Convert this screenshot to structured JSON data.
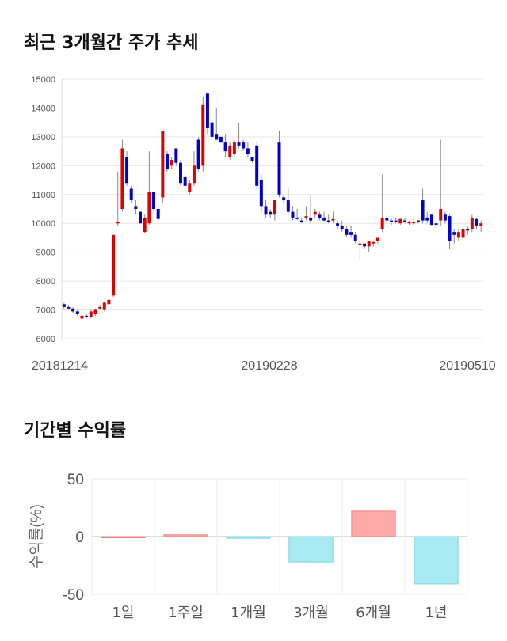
{
  "headings": {
    "price_trend": "최근 3개월간 주가 추세",
    "period_return": "기간별 수익률"
  },
  "chart_data": [
    {
      "type": "candlestick",
      "ylim": [
        6000,
        15000
      ],
      "y_ticks": [
        "15000",
        "14000",
        "13000",
        "12000",
        "11000",
        "10000",
        "9000",
        "8000",
        "7000",
        "6000"
      ],
      "x_tick_labels": [
        "20181214",
        "20190228",
        "20190510"
      ],
      "grid": true,
      "up_color": "#dd0000",
      "down_color": "#0000cc",
      "candles": [
        [
          7200,
          7250,
          7050,
          7100
        ],
        [
          7100,
          7150,
          7000,
          7050
        ],
        [
          7050,
          7100,
          6900,
          6950
        ],
        [
          6950,
          7000,
          6800,
          6850
        ],
        [
          6700,
          6850,
          6650,
          6800
        ],
        [
          6800,
          6850,
          6700,
          6750
        ],
        [
          6750,
          7000,
          6700,
          6950
        ],
        [
          6850,
          7050,
          6800,
          7000
        ],
        [
          7050,
          7150,
          7000,
          7100
        ],
        [
          7000,
          7300,
          6950,
          7250
        ],
        [
          7200,
          7400,
          7150,
          7350
        ],
        [
          7500,
          9600,
          7450,
          9600
        ],
        [
          10000,
          11800,
          9900,
          10050
        ],
        [
          10500,
          12900,
          10400,
          12600
        ],
        [
          12300,
          12500,
          11300,
          11400
        ],
        [
          11200,
          11300,
          10700,
          10800
        ],
        [
          10600,
          10800,
          10300,
          10500
        ],
        [
          10400,
          10400,
          10000,
          10000
        ],
        [
          9700,
          10300,
          9650,
          10200
        ],
        [
          10000,
          12500,
          9950,
          11100
        ],
        [
          11100,
          11100,
          10400,
          10500
        ],
        [
          10500,
          10700,
          10100,
          10150
        ],
        [
          10900,
          13200,
          10700,
          13200
        ],
        [
          12400,
          12500,
          11800,
          11900
        ],
        [
          12000,
          12300,
          11900,
          12200
        ],
        [
          12600,
          12600,
          12000,
          12100
        ],
        [
          12100,
          12200,
          11300,
          11400
        ],
        [
          11600,
          11800,
          11100,
          11300
        ],
        [
          11100,
          11500,
          11000,
          11400
        ],
        [
          11400,
          12500,
          11300,
          12000
        ],
        [
          12900,
          13000,
          11800,
          11900
        ],
        [
          12000,
          14400,
          11800,
          14100
        ],
        [
          14500,
          14500,
          13100,
          13300
        ],
        [
          13500,
          13700,
          12900,
          13000
        ],
        [
          13100,
          14000,
          12900,
          12900
        ],
        [
          13000,
          13000,
          12800,
          12800
        ],
        [
          12800,
          13100,
          12300,
          12500
        ],
        [
          12300,
          12800,
          12200,
          12700
        ],
        [
          12400,
          12900,
          12300,
          12800
        ],
        [
          12800,
          13500,
          12600,
          12700
        ],
        [
          12800,
          12900,
          12500,
          12600
        ],
        [
          12600,
          12800,
          12300,
          12400
        ],
        [
          12300,
          12300,
          12100,
          12150
        ],
        [
          12700,
          12800,
          11200,
          11300
        ],
        [
          11500,
          11700,
          10400,
          10600
        ],
        [
          10600,
          10800,
          10200,
          10300
        ],
        [
          10400,
          10500,
          10200,
          10300
        ],
        [
          10300,
          10800,
          10100,
          10800
        ],
        [
          12800,
          13200,
          10900,
          11000
        ],
        [
          10900,
          11000,
          10700,
          10800
        ],
        [
          10800,
          11200,
          10300,
          10400
        ],
        [
          10400,
          10600,
          10100,
          10200
        ],
        [
          10200,
          10500,
          10100,
          10150
        ],
        [
          10100,
          10200,
          10000,
          10050
        ],
        [
          10200,
          10600,
          10100,
          10250
        ],
        [
          10200,
          11000,
          10000,
          10100
        ],
        [
          10300,
          10500,
          10200,
          10400
        ],
        [
          10300,
          10400,
          10100,
          10200
        ],
        [
          10200,
          10400,
          10050,
          10100
        ],
        [
          10100,
          10300,
          10000,
          10050
        ],
        [
          10100,
          10400,
          10000,
          10150
        ],
        [
          10000,
          10100,
          9800,
          9900
        ],
        [
          9900,
          10100,
          9700,
          9800
        ],
        [
          9800,
          9900,
          9500,
          9600
        ],
        [
          9700,
          9900,
          9500,
          9600
        ],
        [
          9600,
          9700,
          9300,
          9400
        ],
        [
          9300,
          9400,
          8700,
          9300
        ],
        [
          9300,
          9300,
          9100,
          9200
        ],
        [
          9200,
          9400,
          9000,
          9400
        ],
        [
          9300,
          9400,
          9200,
          9350
        ],
        [
          9400,
          9500,
          9300,
          9500
        ],
        [
          9800,
          11700,
          9700,
          10200
        ],
        [
          10200,
          10300,
          10000,
          10100
        ],
        [
          10100,
          10200,
          9950,
          10050
        ],
        [
          10100,
          10200,
          10000,
          10050
        ],
        [
          10000,
          10200,
          9950,
          10150
        ],
        [
          10100,
          10200,
          10000,
          10050
        ],
        [
          10000,
          10100,
          9950,
          10050
        ],
        [
          10000,
          10200,
          9950,
          10050
        ],
        [
          10100,
          10100,
          10000,
          10050
        ],
        [
          10800,
          11200,
          10000,
          10100
        ],
        [
          10200,
          10400,
          10000,
          10100
        ],
        [
          10300,
          10300,
          9900,
          9950
        ],
        [
          10000,
          10100,
          9900,
          9950
        ],
        [
          10100,
          12900,
          9900,
          10500
        ],
        [
          10300,
          10400,
          10000,
          10100
        ],
        [
          10250,
          10300,
          9100,
          9400
        ],
        [
          9700,
          9800,
          9300,
          9600
        ],
        [
          9500,
          9800,
          9400,
          9700
        ],
        [
          9500,
          10100,
          9400,
          9800
        ],
        [
          9800,
          9900,
          9600,
          9750
        ],
        [
          9800,
          10300,
          9700,
          10200
        ],
        [
          10150,
          10200,
          9800,
          9900
        ],
        [
          9900,
          10100,
          9700,
          10000
        ]
      ]
    },
    {
      "type": "bar",
      "categories": [
        "1일",
        "1주일",
        "1개월",
        "3개월",
        "6개월",
        "1년"
      ],
      "values": [
        0,
        1.5,
        -1.5,
        -22,
        22,
        -41
      ],
      "ylim": [
        -50,
        50
      ],
      "y_ticks": [
        "50",
        "0",
        "-50"
      ],
      "ylabel": "수익률(%)",
      "positive_color": "#ffa8a8",
      "negative_color": "#a8eaf2"
    }
  ]
}
